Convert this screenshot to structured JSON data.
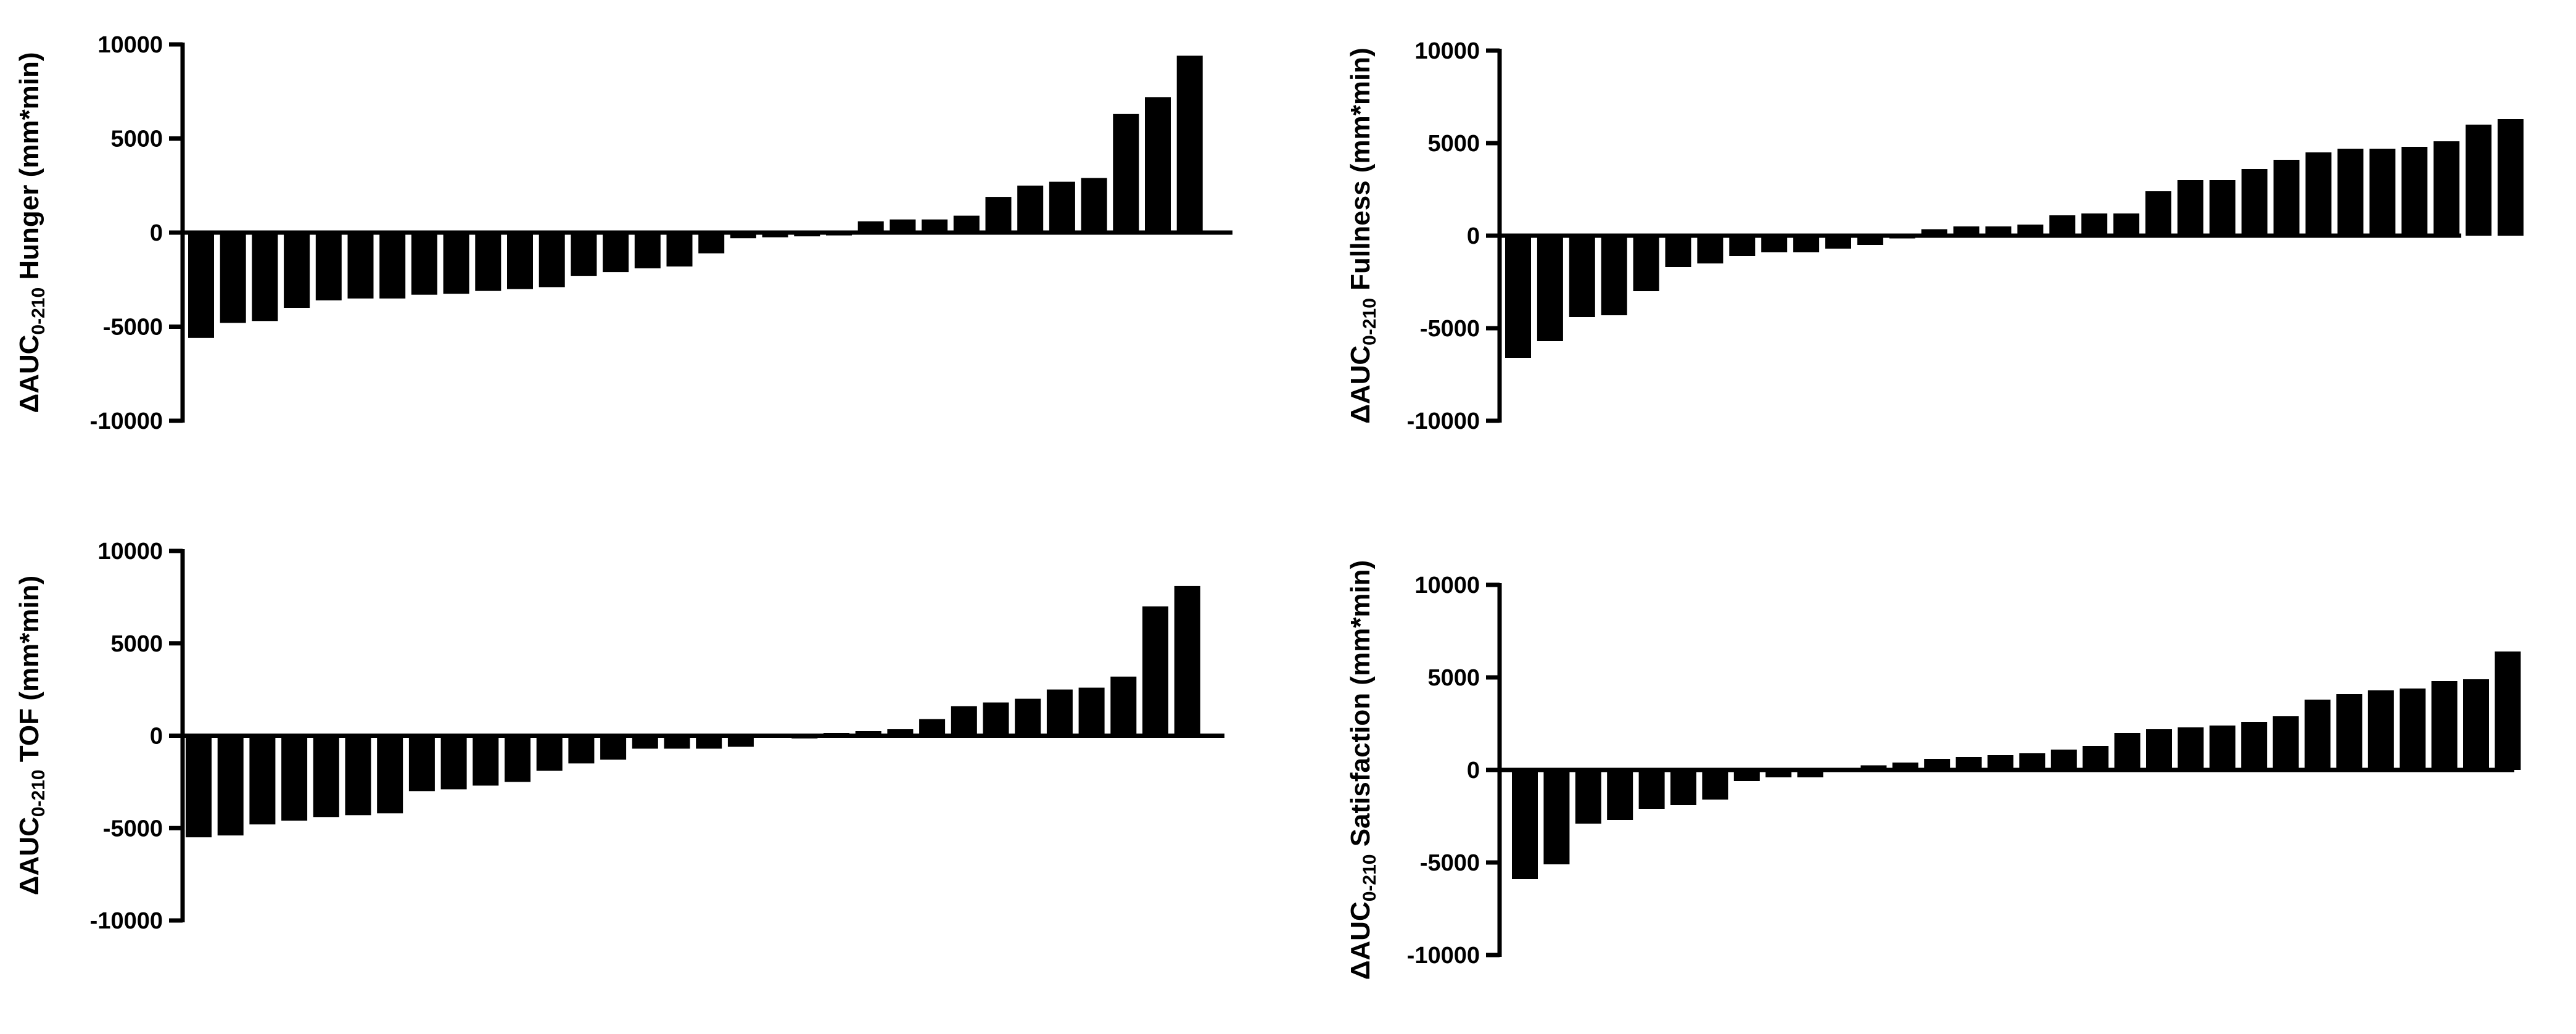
{
  "chart_data": [
    {
      "type": "bar",
      "ylabel": {
        "prefix": "ΔAUC",
        "subscript": "0-210",
        "suffix": " Hunger (mm*min)"
      },
      "ylim": [
        -10000,
        10000
      ],
      "yticks": [
        10000,
        5000,
        0,
        -5000,
        -10000
      ],
      "bar_color": "#000000",
      "values": [
        -5600,
        -4800,
        -4700,
        -4000,
        -3600,
        -3500,
        -3500,
        -3300,
        -3250,
        -3100,
        -3000,
        -2900,
        -2300,
        -2100,
        -1900,
        -1800,
        -1100,
        -300,
        -250,
        -200,
        -150,
        600,
        700,
        700,
        900,
        1900,
        2500,
        2700,
        2900,
        6300,
        7200,
        9400
      ]
    },
    {
      "type": "bar",
      "ylabel": {
        "prefix": "ΔAUC",
        "subscript": "0-210",
        "suffix": " Fullness (mm*min)"
      },
      "ylim": [
        -10000,
        10000
      ],
      "yticks": [
        10000,
        5000,
        0,
        -5000,
        -10000
      ],
      "bar_color": "#000000",
      "values": [
        -6600,
        -5700,
        -4400,
        -4300,
        -3000,
        -1700,
        -1500,
        -1100,
        -900,
        -900,
        -700,
        -500,
        -150,
        350,
        500,
        500,
        600,
        1100,
        1200,
        1200,
        2400,
        3000,
        3000,
        3600,
        4100,
        4500,
        4700,
        4700,
        4800,
        5100,
        6000,
        6300
      ]
    },
    {
      "type": "bar",
      "ylabel": {
        "prefix": "ΔAUC",
        "subscript": "0-210",
        "suffix": " TOF (mm*min)"
      },
      "ylim": [
        -10000,
        10000
      ],
      "yticks": [
        10000,
        5000,
        0,
        -5000,
        -10000
      ],
      "bar_color": "#000000",
      "values": [
        -5500,
        -5400,
        -4800,
        -4600,
        -4400,
        -4300,
        -4200,
        -3000,
        -2900,
        -2700,
        -2500,
        -1900,
        -1500,
        -1300,
        -700,
        -700,
        -700,
        -600,
        -100,
        -150,
        150,
        250,
        350,
        900,
        1600,
        1800,
        2000,
        2500,
        2600,
        3200,
        7000,
        8100
      ]
    },
    {
      "type": "bar",
      "ylabel": {
        "prefix": "ΔAUC",
        "subscript": "0-210",
        "suffix": " Satisfaction (mm*min)"
      },
      "ylim": [
        -10000,
        10000
      ],
      "yticks": [
        10000,
        5000,
        0,
        -5000,
        -10000
      ],
      "bar_color": "#000000",
      "values": [
        -5900,
        -5100,
        -2900,
        -2700,
        -2100,
        -1900,
        -1600,
        -600,
        -400,
        -400,
        -100,
        250,
        400,
        600,
        700,
        800,
        900,
        1100,
        1300,
        2000,
        2200,
        2300,
        2400,
        2600,
        2900,
        3800,
        4100,
        4300,
        4400,
        4800,
        4900,
        6400
      ]
    }
  ]
}
